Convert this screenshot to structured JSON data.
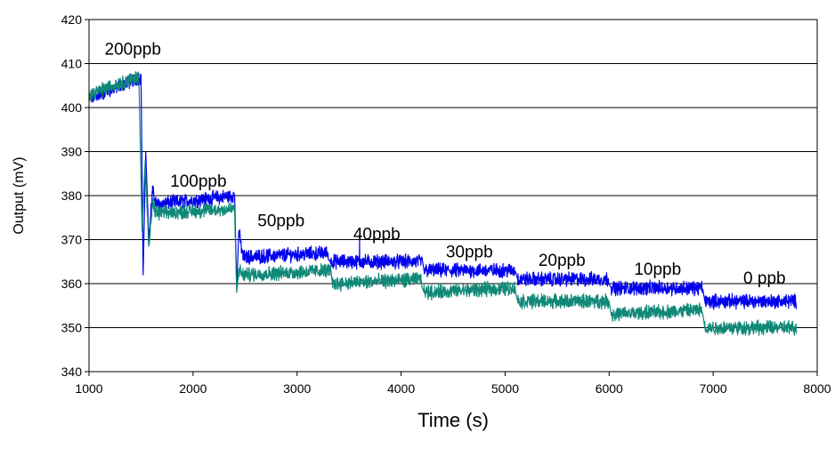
{
  "chart_data": {
    "type": "line",
    "title": "",
    "xlabel": "Time (s)",
    "ylabel": "Output (mV)",
    "xlim": [
      1000,
      8000
    ],
    "ylim": [
      340,
      420
    ],
    "xticks": [
      1000,
      2000,
      3000,
      4000,
      5000,
      6000,
      7000,
      8000
    ],
    "yticks": [
      340,
      350,
      360,
      370,
      380,
      390,
      400,
      410,
      420
    ],
    "grid": "horizontal",
    "legend": "none",
    "annotations": [
      {
        "text": "200ppb",
        "x": 1150,
        "y": 412
      },
      {
        "text": "100ppb",
        "x": 1780,
        "y": 382
      },
      {
        "text": "50ppb",
        "x": 2620,
        "y": 373
      },
      {
        "text": "40ppb",
        "x": 3540,
        "y": 370
      },
      {
        "text": "30ppb",
        "x": 4430,
        "y": 366
      },
      {
        "text": "20ppb",
        "x": 5320,
        "y": 364
      },
      {
        "text": "10ppb",
        "x": 6240,
        "y": 362
      },
      {
        "text": "0 ppb",
        "x": 7290,
        "y": 360
      }
    ],
    "series": [
      {
        "color": "#0000ee",
        "points": [
          [
            1000,
            402
          ],
          [
            1500,
            407
          ],
          [
            1520,
            362
          ],
          [
            1545,
            390
          ],
          [
            1575,
            370
          ],
          [
            1610,
            381
          ],
          [
            1650,
            378
          ],
          [
            2400,
            380
          ],
          [
            2420,
            359
          ],
          [
            2440,
            372
          ],
          [
            2480,
            366
          ],
          [
            3300,
            367
          ],
          [
            3320,
            365
          ],
          [
            3600,
            365
          ],
          [
            3601,
            371
          ],
          [
            3602,
            365
          ],
          [
            4200,
            365
          ],
          [
            4220,
            363
          ],
          [
            5100,
            363
          ],
          [
            5120,
            361
          ],
          [
            6000,
            361
          ],
          [
            6020,
            359
          ],
          [
            6900,
            359
          ],
          [
            6920,
            356
          ],
          [
            7800,
            356
          ]
        ]
      },
      {
        "color": "#108878",
        "points": [
          [
            1000,
            403
          ],
          [
            1480,
            407
          ],
          [
            1510,
            372
          ],
          [
            1540,
            388
          ],
          [
            1575,
            368
          ],
          [
            1610,
            378
          ],
          [
            1650,
            376
          ],
          [
            2400,
            377
          ],
          [
            2420,
            358
          ],
          [
            2440,
            363
          ],
          [
            2480,
            362
          ],
          [
            3320,
            363
          ],
          [
            3340,
            360
          ],
          [
            4200,
            361
          ],
          [
            4220,
            358
          ],
          [
            5100,
            359
          ],
          [
            5120,
            356
          ],
          [
            6000,
            356
          ],
          [
            6020,
            353
          ],
          [
            6900,
            354
          ],
          [
            6920,
            350
          ],
          [
            7800,
            350
          ]
        ]
      }
    ]
  }
}
